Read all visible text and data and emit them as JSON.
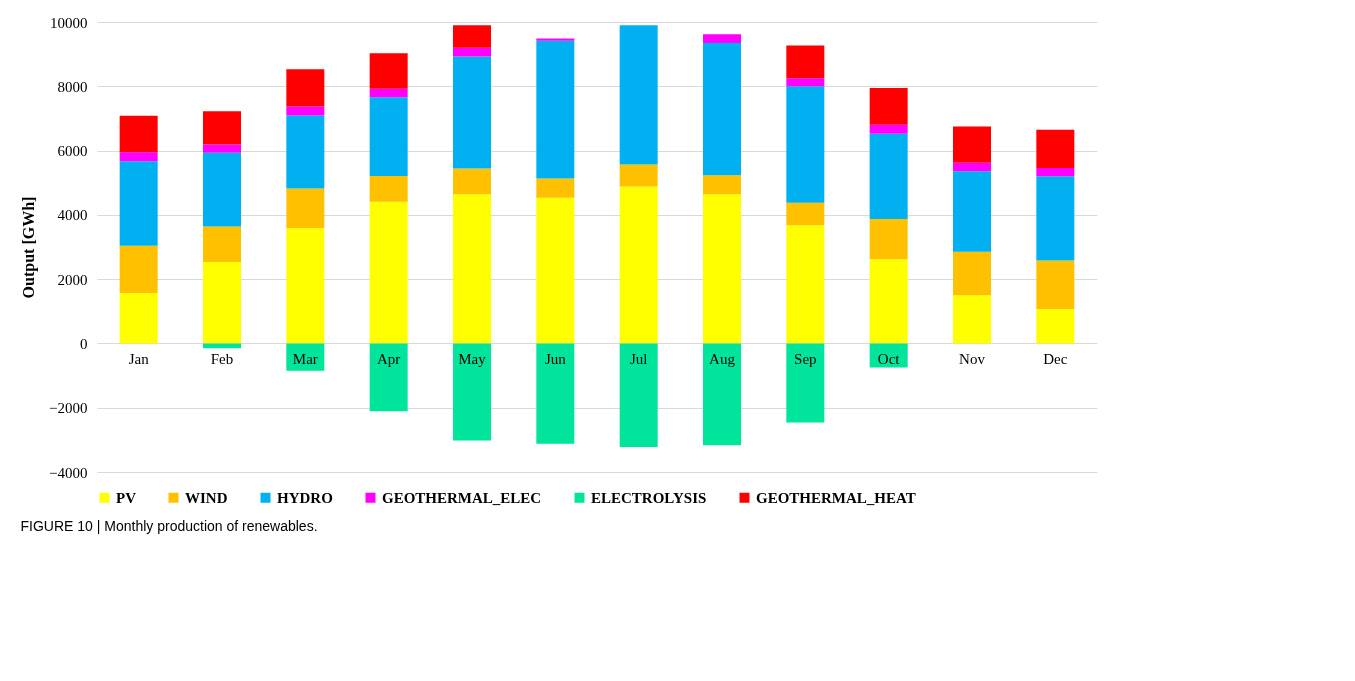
{
  "chart_data": {
    "type": "bar",
    "stacked": true,
    "ylabel": "Output [GWh]",
    "annotations": [
      "FIGURE 10 | Monthly production of renewables."
    ],
    "categories": [
      "Jan",
      "Feb",
      "Mar",
      "Apr",
      "May",
      "Jun",
      "Jul",
      "Aug",
      "Sep",
      "Oct",
      "Nov",
      "Dec"
    ],
    "series": [
      {
        "name": "PV",
        "color": "#ffff00",
        "values": [
          1570,
          2530,
          3580,
          4410,
          4640,
          4530,
          4880,
          4640,
          3680,
          2620,
          1500,
          1070
        ]
      },
      {
        "name": "WIND",
        "color": "#ffc000",
        "values": [
          1470,
          1110,
          1240,
          800,
          800,
          600,
          690,
          590,
          700,
          1250,
          1350,
          1510
        ]
      },
      {
        "name": "HYDRO",
        "color": "#00b0f0",
        "values": [
          2630,
          2290,
          2270,
          2450,
          3490,
          4290,
          4330,
          4120,
          3620,
          2650,
          2510,
          2620
        ]
      },
      {
        "name": "GEOTHERMAL_ELEC",
        "color": "#ff00ff",
        "values": [
          280,
          260,
          280,
          260,
          270,
          70,
          0,
          270,
          250,
          280,
          260,
          260
        ]
      },
      {
        "name": "ELECTROLYSIS",
        "color": "#00e59b",
        "values": [
          0,
          -150,
          -850,
          -2110,
          -3020,
          -3120,
          -3220,
          -3170,
          -2460,
          -750,
          0,
          0
        ]
      },
      {
        "name": "GEOTHERMAL_HEAT",
        "color": "#ff0000",
        "values": [
          1130,
          1030,
          1160,
          1110,
          700,
          0,
          0,
          0,
          1020,
          1150,
          1130,
          1190
        ]
      }
    ],
    "ylim": [
      -4000,
      10000
    ],
    "yticks": [
      -4000,
      -2000,
      0,
      2000,
      4000,
      6000,
      8000,
      10000
    ],
    "grid": "y",
    "legend": "bottom"
  }
}
